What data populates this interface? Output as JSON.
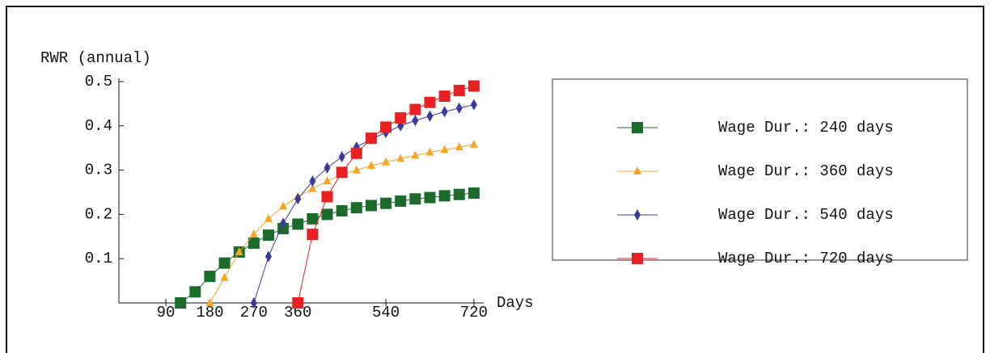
{
  "chart_data": {
    "type": "line",
    "y_label": "RWR (annual)",
    "x_label": "Days",
    "xlim": [
      -6,
      740
    ],
    "ylim": [
      0,
      0.5
    ],
    "xticks": [
      90,
      180,
      270,
      360,
      540,
      720
    ],
    "yticks": [
      0.1,
      0.2,
      0.3,
      0.4,
      0.5
    ],
    "series": [
      {
        "name": "Wage Dur.: 240 days",
        "color": "#1b6b2b",
        "marker": "square",
        "x": [
          120,
          150,
          180,
          210,
          240,
          270,
          300,
          330,
          360,
          390,
          420,
          450,
          480,
          510,
          540,
          570,
          600,
          630,
          660,
          690,
          720
        ],
        "values": [
          0,
          0.025,
          0.06,
          0.09,
          0.115,
          0.135,
          0.153,
          0.168,
          0.178,
          0.19,
          0.2,
          0.208,
          0.215,
          0.22,
          0.225,
          0.23,
          0.235,
          0.238,
          0.242,
          0.245,
          0.248
        ]
      },
      {
        "name": "Wage Dur.: 360 days",
        "color": "#f5a623",
        "marker": "triangle",
        "x": [
          180,
          210,
          240,
          270,
          300,
          330,
          360,
          390,
          420,
          450,
          480,
          510,
          540,
          570,
          600,
          630,
          660,
          690,
          720
        ],
        "values": [
          0,
          0.057,
          0.115,
          0.155,
          0.19,
          0.218,
          0.24,
          0.258,
          0.275,
          0.29,
          0.3,
          0.31,
          0.318,
          0.326,
          0.333,
          0.34,
          0.346,
          0.352,
          0.358
        ]
      },
      {
        "name": "Wage Dur.: 540 days",
        "color": "#3a3a9c",
        "marker": "diamond",
        "x": [
          270,
          300,
          330,
          360,
          390,
          420,
          450,
          480,
          510,
          540,
          570,
          600,
          630,
          660,
          690,
          720
        ],
        "values": [
          0,
          0.105,
          0.18,
          0.235,
          0.275,
          0.305,
          0.33,
          0.352,
          0.37,
          0.385,
          0.4,
          0.412,
          0.422,
          0.432,
          0.44,
          0.448
        ]
      },
      {
        "name": "Wage Dur.: 720 days",
        "color": "#e82222",
        "marker": "square",
        "x": [
          360,
          390,
          420,
          450,
          480,
          510,
          540,
          570,
          600,
          630,
          660,
          690,
          720
        ],
        "values": [
          0,
          0.155,
          0.24,
          0.295,
          0.338,
          0.372,
          0.397,
          0.418,
          0.437,
          0.453,
          0.467,
          0.48,
          0.49
        ]
      }
    ]
  }
}
